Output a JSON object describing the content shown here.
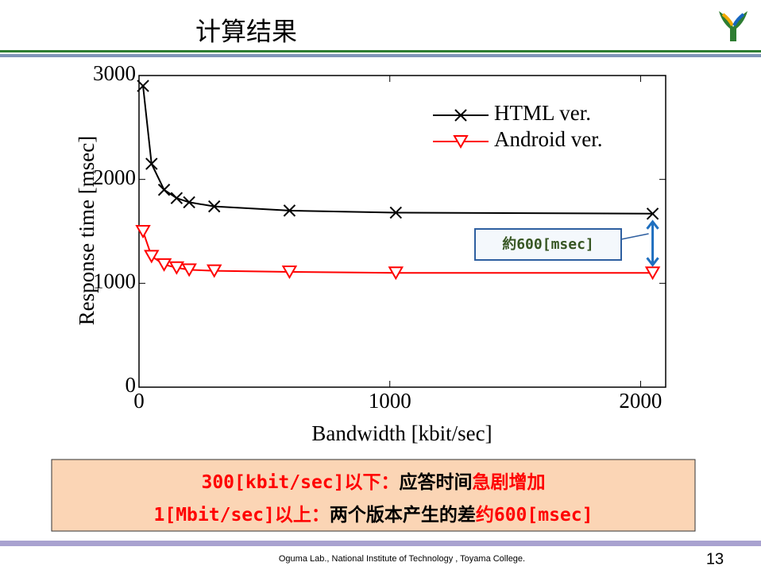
{
  "slide_title": "计算结果",
  "chart_data": {
    "type": "line",
    "x_label": "Bandwidth [kbit/sec]",
    "y_label": "Response time [msec]",
    "x": [
      16,
      50,
      100,
      150,
      200,
      300,
      600,
      1024,
      2048
    ],
    "series": [
      {
        "name": "HTML ver.",
        "color": "#000000",
        "marker": "x",
        "values": [
          2900,
          2150,
          1900,
          1820,
          1780,
          1740,
          1700,
          1680,
          1670
        ]
      },
      {
        "name": "Android ver.",
        "color": "#ff0000",
        "marker": "triangle-down",
        "values": [
          1500,
          1260,
          1180,
          1150,
          1130,
          1120,
          1110,
          1100,
          1100
        ]
      }
    ],
    "xlim": [
      0,
      2100
    ],
    "xticks": [
      0,
      1000,
      2000
    ],
    "ylim": [
      0,
      3000
    ],
    "yticks": [
      0,
      1000,
      2000,
      3000
    ],
    "legend": "upper right",
    "annotation": "約600[msec]"
  },
  "summary": {
    "line1": [
      "300[kbit/sec]以下：",
      "应答时间",
      "急剧增加"
    ],
    "line2": [
      "1[Mbit/sec]以上：",
      "两个版本产生的差",
      "约600[msec]"
    ]
  },
  "footer": "Oguma Lab., National Institute of Technology , Toyama College.",
  "page_number": "13"
}
